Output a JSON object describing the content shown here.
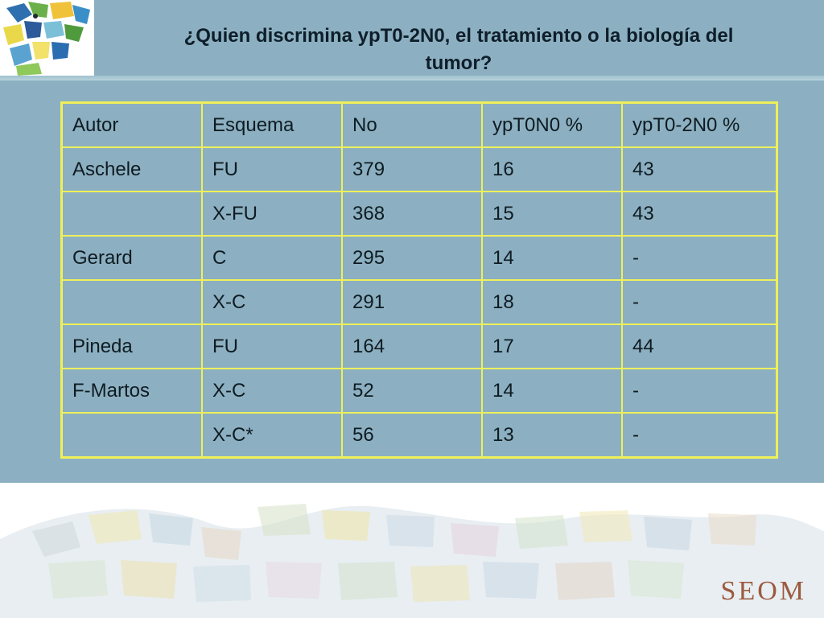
{
  "slide": {
    "title_line1": "¿Quien discrimina ypT0-2N0, el tratamiento o la biología del",
    "title_line2": "tumor?"
  },
  "table": {
    "headers": [
      "Autor",
      "Esquema",
      "No",
      "ypT0N0 %",
      "ypT0-2N0 %"
    ],
    "rows": [
      [
        "Aschele",
        "FU",
        "379",
        "16",
        "43"
      ],
      [
        "",
        "X-FU",
        "368",
        "15",
        "43"
      ],
      [
        "Gerard",
        "C",
        "295",
        "14",
        "-"
      ],
      [
        "",
        "X-C",
        "291",
        "18",
        "-"
      ],
      [
        "Pineda",
        "FU",
        "164",
        "17",
        "44"
      ],
      [
        "F-Martos",
        "X-C",
        "52",
        "14",
        "-"
      ],
      [
        "",
        "X-C*",
        "56",
        "13",
        "-"
      ]
    ]
  },
  "footer": {
    "brand": "SEOM"
  },
  "colors": {
    "background": "#8cb0c1",
    "table_border": "#eef05a",
    "brand": "#9c5a3e"
  },
  "icons": {
    "logo": "mosaic-logo-icon",
    "footer": "mosaic-lizard-art"
  }
}
